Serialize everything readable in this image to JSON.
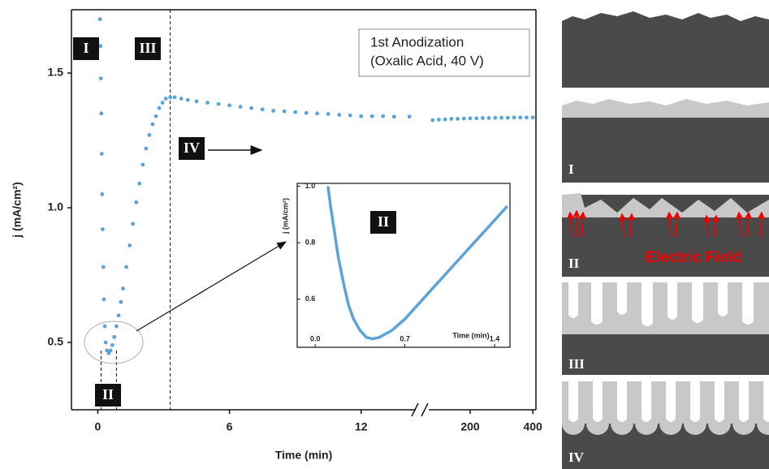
{
  "chart_data": [
    {
      "type": "scatter",
      "xlabel": "Time (min)",
      "ylabel": "j (mA/cm²)",
      "annotation": [
        "1st Anodization",
        "(Oxalic Acid, 40 V)"
      ],
      "stage_labels": [
        "I",
        "II",
        "III",
        "IV"
      ],
      "xlim": [
        [
          -1.2,
          14.6
        ],
        [
          60,
          410
        ]
      ],
      "xticks": [
        0,
        6,
        12,
        200,
        400
      ],
      "ylim": [
        0.25,
        1.735
      ],
      "yticks": [
        0.5,
        {
          "value": 1.0,
          "label": "1.0"
        },
        1.5
      ],
      "dashed_x": [
        0.15,
        0.85,
        3.3
      ],
      "series": [
        {
          "color": "#5ba3d9",
          "x": [
            0.1,
            0.12,
            0.14,
            0.16,
            0.18,
            0.2,
            0.22,
            0.25,
            0.28,
            0.32,
            0.36,
            0.42,
            0.5,
            0.58,
            0.66,
            0.75,
            0.85,
            0.95,
            1.05,
            1.15,
            1.3,
            1.45,
            1.6,
            1.75,
            1.9,
            2.05,
            2.2,
            2.35,
            2.5,
            2.65,
            2.8,
            2.95,
            3.1,
            3.3,
            3.5,
            3.8,
            4.1,
            4.5,
            5.0,
            5.5,
            6.0,
            6.5,
            7.0,
            7.5,
            8.0,
            8.5,
            9.0,
            9.5,
            10.0,
            10.5,
            11.0,
            11.5,
            12.0,
            12.5,
            13.0,
            13.5,
            14.2,
            80,
            100,
            120,
            140,
            160,
            180,
            200,
            220,
            240,
            260,
            280,
            300,
            320,
            340,
            360,
            380,
            400
          ],
          "values": [
            1.7,
            1.6,
            1.48,
            1.35,
            1.2,
            1.05,
            0.92,
            0.78,
            0.66,
            0.56,
            0.5,
            0.47,
            0.46,
            0.47,
            0.49,
            0.52,
            0.56,
            0.6,
            0.65,
            0.7,
            0.78,
            0.86,
            0.94,
            1.02,
            1.09,
            1.16,
            1.22,
            1.27,
            1.31,
            1.34,
            1.37,
            1.39,
            1.405,
            1.41,
            1.41,
            1.405,
            1.4,
            1.395,
            1.39,
            1.385,
            1.38,
            1.375,
            1.37,
            1.365,
            1.36,
            1.358,
            1.355,
            1.352,
            1.35,
            1.348,
            1.345,
            1.343,
            1.34,
            1.34,
            1.34,
            1.338,
            1.338,
            1.325,
            1.327,
            1.328,
            1.33,
            1.33,
            1.331,
            1.332,
            1.332,
            1.333,
            1.333,
            1.334,
            1.334,
            1.334,
            1.335,
            1.335,
            1.335,
            1.335
          ]
        }
      ]
    },
    {
      "type": "line",
      "xlabel": "Time (min)",
      "ylabel": "j (mA/cm²)",
      "stage_label": "II",
      "xlim": [
        -0.14,
        1.52
      ],
      "xticks": [
        {
          "value": 0,
          "label": "0.0"
        },
        0.7,
        1.4
      ],
      "ylim": [
        0.43,
        1.01
      ],
      "yticks": [
        0.6,
        0.8,
        {
          "value": 1.0,
          "label": "1.0"
        }
      ],
      "series": [
        {
          "color": "#5ba3d9",
          "x": [
            0.1,
            0.12,
            0.15,
            0.18,
            0.22,
            0.26,
            0.3,
            0.35,
            0.4,
            0.45,
            0.5,
            0.6,
            0.7,
            0.8,
            0.9,
            1.0,
            1.1,
            1.2,
            1.3,
            1.4,
            1.5
          ],
          "values": [
            1.0,
            0.93,
            0.84,
            0.75,
            0.66,
            0.58,
            0.53,
            0.49,
            0.465,
            0.46,
            0.465,
            0.49,
            0.53,
            0.58,
            0.63,
            0.68,
            0.73,
            0.78,
            0.83,
            0.88,
            0.93
          ]
        }
      ]
    }
  ],
  "panels": {
    "labels": [
      "I",
      "II",
      "III",
      "IV"
    ],
    "field_label": "Electric Field"
  }
}
